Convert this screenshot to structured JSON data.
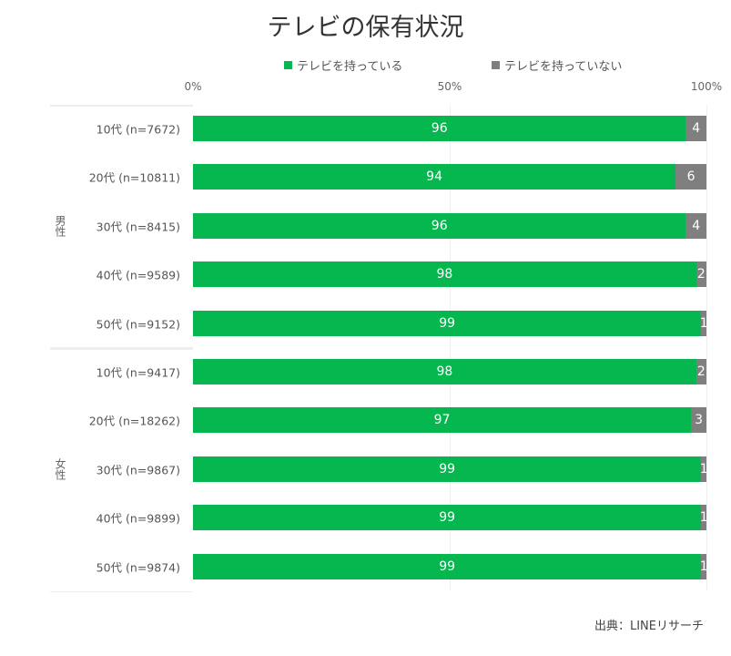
{
  "chart_data": {
    "type": "bar",
    "orientation": "horizontal",
    "stacked": true,
    "title": "テレビの保有状況",
    "source": "出典：LINEリサーチ",
    "xlim": [
      0,
      100
    ],
    "xticks": [
      "0%",
      "50%",
      "100%"
    ],
    "legend_placement": "top",
    "grid": true,
    "groups": [
      {
        "name": "男性",
        "categories": [
          "10代 (n=7672)",
          "20代 (n=10811)",
          "30代 (n=8415)",
          "40代 (n=9589)",
          "50代 (n=9152)"
        ]
      },
      {
        "name": "女性",
        "categories": [
          "10代 (n=9417)",
          "20代 (n=18262)",
          "30代 (n=9867)",
          "40代 (n=9899)",
          "50代 (n=9874)"
        ]
      }
    ],
    "series": [
      {
        "name": "テレビを持っている",
        "color": "#06b74f",
        "values": [
          96,
          94,
          96,
          98,
          99,
          98,
          97,
          99,
          99,
          99
        ]
      },
      {
        "name": "テレビを持っていない",
        "color": "#7f7f7f",
        "values": [
          4,
          6,
          4,
          2,
          1,
          2,
          3,
          1,
          1,
          1
        ]
      }
    ]
  }
}
